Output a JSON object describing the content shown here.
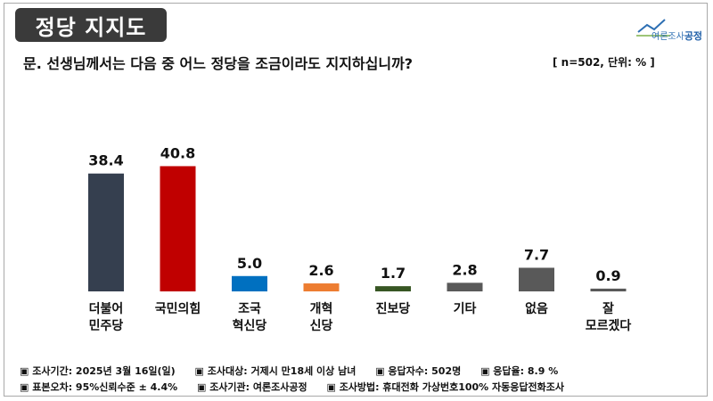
{
  "header": {
    "title": "정당 지지도",
    "question": "문. 선생님께서는 다음 중 어느 정당을 조금이라도 지지하십니까?",
    "meta": "[ n=502, 단위: % ]",
    "logo_prefix": "여론조사",
    "logo_name": "공정"
  },
  "chart_data": {
    "type": "bar",
    "title": "정당 지지도",
    "categories": [
      "더불어\n민주당",
      "국민의힘",
      "조국\n혁신당",
      "개혁\n신당",
      "진보당",
      "기타",
      "없음",
      "잘\n모르겠다"
    ],
    "values": [
      38.4,
      40.8,
      5.0,
      2.6,
      1.7,
      2.8,
      7.7,
      0.9
    ],
    "value_labels": [
      "38.4",
      "40.8",
      "5.0",
      "2.6",
      "1.7",
      "2.8",
      "7.7",
      "0.9"
    ],
    "colors": [
      "#353f4f",
      "#c00000",
      "#0070c0",
      "#ed7d31",
      "#375623",
      "#595959",
      "#595959",
      "#595959"
    ],
    "unit": "%",
    "ylim": [
      0,
      45
    ],
    "xlabel": "",
    "ylabel": "",
    "grid": false
  },
  "footer": {
    "line1": [
      "▣ 조사기간: 2025년 3월 16일(일)",
      "▣ 조사대상: 거제시 만18세 이상 남녀",
      "▣ 응답자수: 502명",
      "▣ 응답율:  8.9 %"
    ],
    "line2": [
      "▣ 표본오차: 95%신뢰수준 ± 4.4%",
      "▣ 조사기관: 여론조사공정",
      "▣ 조사방법: 휴대전화 가상번호100% 자동응답전화조사"
    ]
  }
}
